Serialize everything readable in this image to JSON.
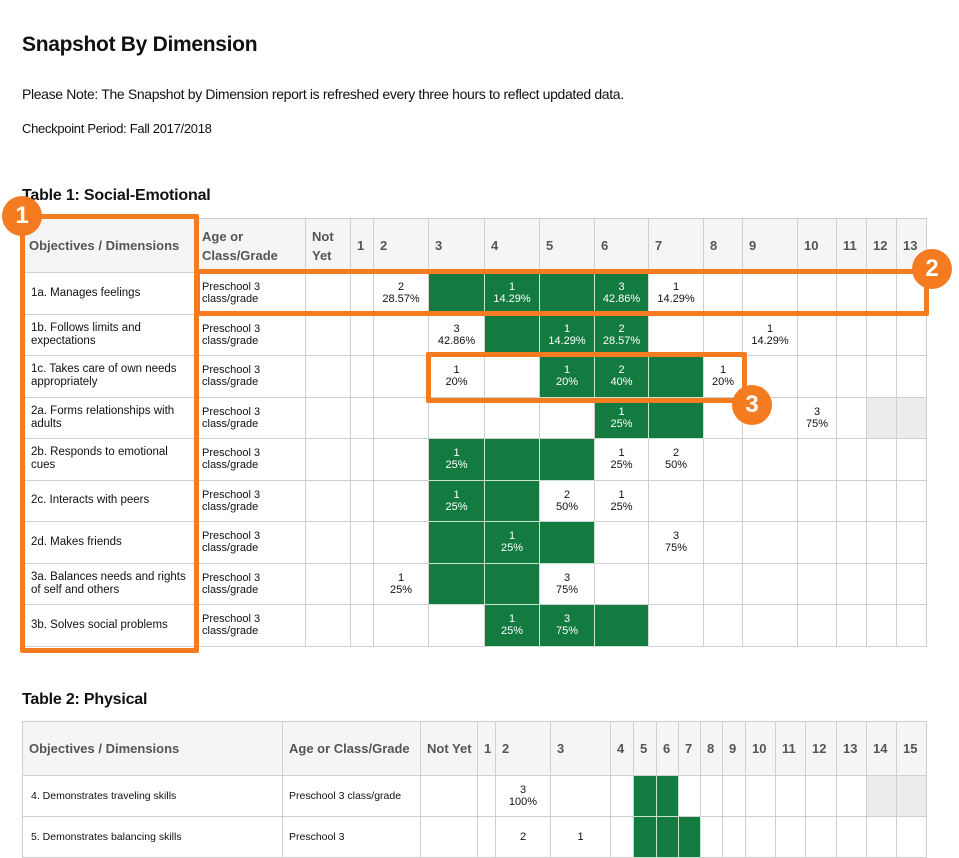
{
  "header": {
    "title": "Snapshot By Dimension",
    "note": "Please Note: The Snapshot by Dimension report is refreshed every three hours to reflect updated data.",
    "checkpoint": "Checkpoint Period: Fall 2017/2018"
  },
  "colors": {
    "green": "#137a40",
    "annotation": "#f47b20",
    "gray": "#ececec"
  },
  "tables": [
    {
      "caption": "Table 1: Social-Emotional",
      "headers": [
        "Objectives / Dimensions",
        "Age or Class/Grade",
        "Not Yet",
        "1",
        "2",
        "3",
        "4",
        "5",
        "6",
        "7",
        "8",
        "9",
        "10",
        "11",
        "12",
        "13"
      ],
      "rows": [
        {
          "objective": "1a. Manages feelings",
          "age": "Preschool 3 class/grade",
          "cells": [
            {},
            {},
            {
              "count": "2",
              "pct": "28.57%"
            },
            {
              "shade": "green"
            },
            {
              "shade": "green",
              "count": "1",
              "pct": "14.29%"
            },
            {
              "shade": "green"
            },
            {
              "shade": "green",
              "count": "3",
              "pct": "42.86%"
            },
            {
              "count": "1",
              "pct": "14.29%"
            },
            {},
            {},
            {},
            {},
            {},
            {}
          ]
        },
        {
          "objective": "1b. Follows limits and expectations",
          "age": "Preschool 3 class/grade",
          "cells": [
            {},
            {},
            {},
            {
              "count": "3",
              "pct": "42.86%"
            },
            {
              "shade": "green"
            },
            {
              "shade": "green",
              "count": "1",
              "pct": "14.29%"
            },
            {
              "shade": "green",
              "count": "2",
              "pct": "28.57%"
            },
            {},
            {},
            {
              "count": "1",
              "pct": "14.29%"
            },
            {},
            {},
            {},
            {}
          ]
        },
        {
          "objective": "1c. Takes care of own needs appropriately",
          "age": "Preschool 3 class/grade",
          "cells": [
            {},
            {},
            {},
            {
              "count": "1",
              "pct": "20%"
            },
            {},
            {
              "shade": "green",
              "count": "1",
              "pct": "20%"
            },
            {
              "shade": "green",
              "count": "2",
              "pct": "40%"
            },
            {
              "shade": "green"
            },
            {
              "count": "1",
              "pct": "20%"
            },
            {},
            {},
            {},
            {},
            {}
          ]
        },
        {
          "objective": "2a. Forms relationships with adults",
          "age": "Preschool 3 class/grade",
          "cells": [
            {},
            {},
            {},
            {},
            {},
            {},
            {
              "shade": "green",
              "count": "1",
              "pct": "25%"
            },
            {
              "shade": "green"
            },
            {},
            {},
            {
              "count": "3",
              "pct": "75%"
            },
            {},
            {
              "shade": "gray"
            },
            {
              "shade": "gray"
            }
          ]
        },
        {
          "objective": "2b. Responds to emotional cues",
          "age": "Preschool 3 class/grade",
          "cells": [
            {},
            {},
            {},
            {
              "shade": "green",
              "count": "1",
              "pct": "25%"
            },
            {
              "shade": "green"
            },
            {
              "shade": "green"
            },
            {
              "count": "1",
              "pct": "25%"
            },
            {
              "count": "2",
              "pct": "50%"
            },
            {},
            {},
            {},
            {},
            {},
            {}
          ]
        },
        {
          "objective": "2c. Interacts with peers",
          "age": "Preschool 3 class/grade",
          "cells": [
            {},
            {},
            {},
            {
              "shade": "green",
              "count": "1",
              "pct": "25%"
            },
            {
              "shade": "green"
            },
            {
              "count": "2",
              "pct": "50%"
            },
            {
              "count": "1",
              "pct": "25%"
            },
            {},
            {},
            {},
            {},
            {},
            {},
            {}
          ]
        },
        {
          "objective": "2d. Makes friends",
          "age": "Preschool 3 class/grade",
          "cells": [
            {},
            {},
            {},
            {
              "shade": "green"
            },
            {
              "shade": "green",
              "count": "1",
              "pct": "25%"
            },
            {
              "shade": "green"
            },
            {},
            {
              "count": "3",
              "pct": "75%"
            },
            {},
            {},
            {},
            {},
            {},
            {}
          ]
        },
        {
          "objective": "3a. Balances needs and rights of self and others",
          "age": "Preschool 3 class/grade",
          "cells": [
            {},
            {},
            {
              "count": "1",
              "pct": "25%"
            },
            {
              "shade": "green"
            },
            {
              "shade": "green"
            },
            {
              "count": "3",
              "pct": "75%"
            },
            {},
            {},
            {},
            {},
            {},
            {},
            {},
            {}
          ]
        },
        {
          "objective": "3b. Solves social problems",
          "age": "Preschool 3 class/grade",
          "cells": [
            {},
            {},
            {},
            {},
            {
              "shade": "green",
              "count": "1",
              "pct": "25%"
            },
            {
              "shade": "green",
              "count": "3",
              "pct": "75%"
            },
            {
              "shade": "green"
            },
            {},
            {},
            {},
            {},
            {},
            {},
            {}
          ]
        }
      ]
    },
    {
      "caption": "Table 2: Physical",
      "headers": [
        "Objectives / Dimensions",
        "Age or Class/Grade",
        "Not Yet",
        "1",
        "2",
        "3",
        "4",
        "5",
        "6",
        "7",
        "8",
        "9",
        "10",
        "11",
        "12",
        "13",
        "14",
        "15"
      ],
      "rows": [
        {
          "objective": "4. Demonstrates traveling skills",
          "age": "Preschool 3 class/grade",
          "cells": [
            {},
            {},
            {
              "count": "3",
              "pct": "100%"
            },
            {},
            {},
            {
              "shade": "green"
            },
            {
              "shade": "green"
            },
            {},
            {},
            {},
            {},
            {},
            {},
            {},
            {
              "shade": "gray"
            },
            {
              "shade": "gray"
            }
          ]
        },
        {
          "objective": "5. Demonstrates balancing skills",
          "age": "Preschool 3",
          "cells": [
            {},
            {},
            {
              "count": "2"
            },
            {
              "count": "1"
            },
            {},
            {
              "shade": "green"
            },
            {
              "shade": "green"
            },
            {
              "shade": "green"
            },
            {},
            {},
            {},
            {},
            {},
            {},
            {},
            {}
          ]
        }
      ]
    }
  ],
  "annotations": [
    "1",
    "2",
    "3"
  ]
}
